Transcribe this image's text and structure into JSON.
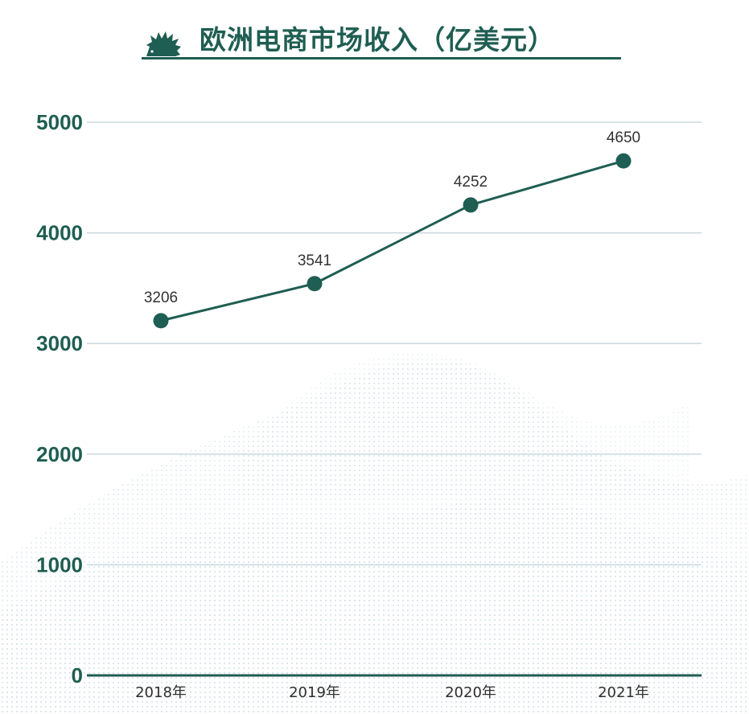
{
  "title": "欧洲电商市场收入（亿美元）",
  "title_icon": "hedgehog-logo-icon",
  "colors": {
    "accent": "#1f5e52",
    "grid": "#c9d8dc",
    "background": "#ffffff"
  },
  "chart_data": {
    "type": "line",
    "title": "欧洲电商市场收入（亿美元）",
    "xlabel": "",
    "ylabel": "",
    "categories": [
      "2018年",
      "2019年",
      "2020年",
      "2021年"
    ],
    "y_ticks": [
      "0",
      "1000",
      "2000",
      "3000",
      "4000",
      "5000"
    ],
    "ylim": [
      0,
      5000
    ],
    "grid": true,
    "legend": "none",
    "series": [
      {
        "values": [
          3206,
          3541,
          4252,
          4650
        ],
        "labels": [
          "3206",
          "3541",
          "4252",
          "4650"
        ]
      }
    ]
  }
}
